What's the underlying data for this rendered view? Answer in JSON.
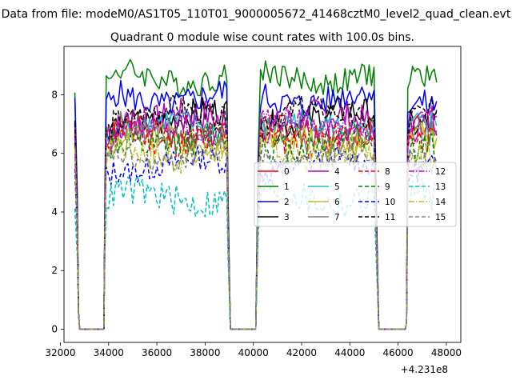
{
  "figure_title": "Data from file: modeM0/AS1T05_110T01_9000005672_41468cztM0_level2_quad_clean.evt",
  "chart_data": {
    "type": "line",
    "title": "Quadrant 0 module wise count rates with 100.0s bins.",
    "xlabel": "",
    "ylabel": "",
    "x_offset_label": "+4.231e8",
    "xlim": [
      32150,
      48600
    ],
    "ylim": [
      -0.45,
      9.65
    ],
    "xticks": [
      32000,
      34000,
      36000,
      38000,
      40000,
      42000,
      44000,
      46000,
      48000
    ],
    "xtick_labels": [
      "32000",
      "34000",
      "36000",
      "38000",
      "40000",
      "42000",
      "44000",
      "46000",
      "48000"
    ],
    "yticks": [
      0,
      2,
      4,
      6,
      8
    ],
    "ytick_labels": [
      "0",
      "2",
      "4",
      "6",
      "8"
    ],
    "segments": [
      [
        32600,
        32700
      ],
      [
        33900,
        38900
      ],
      [
        40300,
        45000
      ],
      [
        46400,
        47600
      ]
    ],
    "gap_edges": [
      [
        32800,
        33800
      ],
      [
        39100,
        40100
      ],
      [
        45200,
        46300
      ]
    ],
    "legend": {
      "position": "center-right",
      "columns": 4
    },
    "series": [
      {
        "name": "0",
        "color": "#ff0000",
        "dash": "solid",
        "level": 6.7
      },
      {
        "name": "1",
        "color": "#008000",
        "dash": "solid",
        "level": 8.6
      },
      {
        "name": "2",
        "color": "#0000ff",
        "dash": "solid",
        "level": 7.9
      },
      {
        "name": "3",
        "color": "#000000",
        "dash": "solid",
        "level": 7.2
      },
      {
        "name": "4",
        "color": "#bf00bf",
        "dash": "solid",
        "level": 7.1
      },
      {
        "name": "5",
        "color": "#17becf",
        "dash": "solid",
        "level": 6.9
      },
      {
        "name": "6",
        "color": "#bcbd22",
        "dash": "solid",
        "level": 6.4
      },
      {
        "name": "7",
        "color": "#7f7f7f",
        "dash": "solid",
        "level": 6.7
      },
      {
        "name": "8",
        "color": "#ff0000",
        "dash": "dashed",
        "level": 6.6
      },
      {
        "name": "9",
        "color": "#008000",
        "dash": "dashed",
        "level": 6.4
      },
      {
        "name": "10",
        "color": "#0000ff",
        "dash": "dashed",
        "level": 5.6
      },
      {
        "name": "11",
        "color": "#000000",
        "dash": "dashed",
        "level": 7.3
      },
      {
        "name": "12",
        "color": "#bf00bf",
        "dash": "dashdot",
        "level": 6.9
      },
      {
        "name": "13",
        "color": "#00bfbf",
        "dash": "dashed",
        "level": 4.5
      },
      {
        "name": "14",
        "color": "#bcbd22",
        "dash": "dashdot",
        "level": 6.1
      },
      {
        "name": "15",
        "color": "#7f7f7f",
        "dash": "dashed",
        "level": 5.9
      }
    ]
  }
}
